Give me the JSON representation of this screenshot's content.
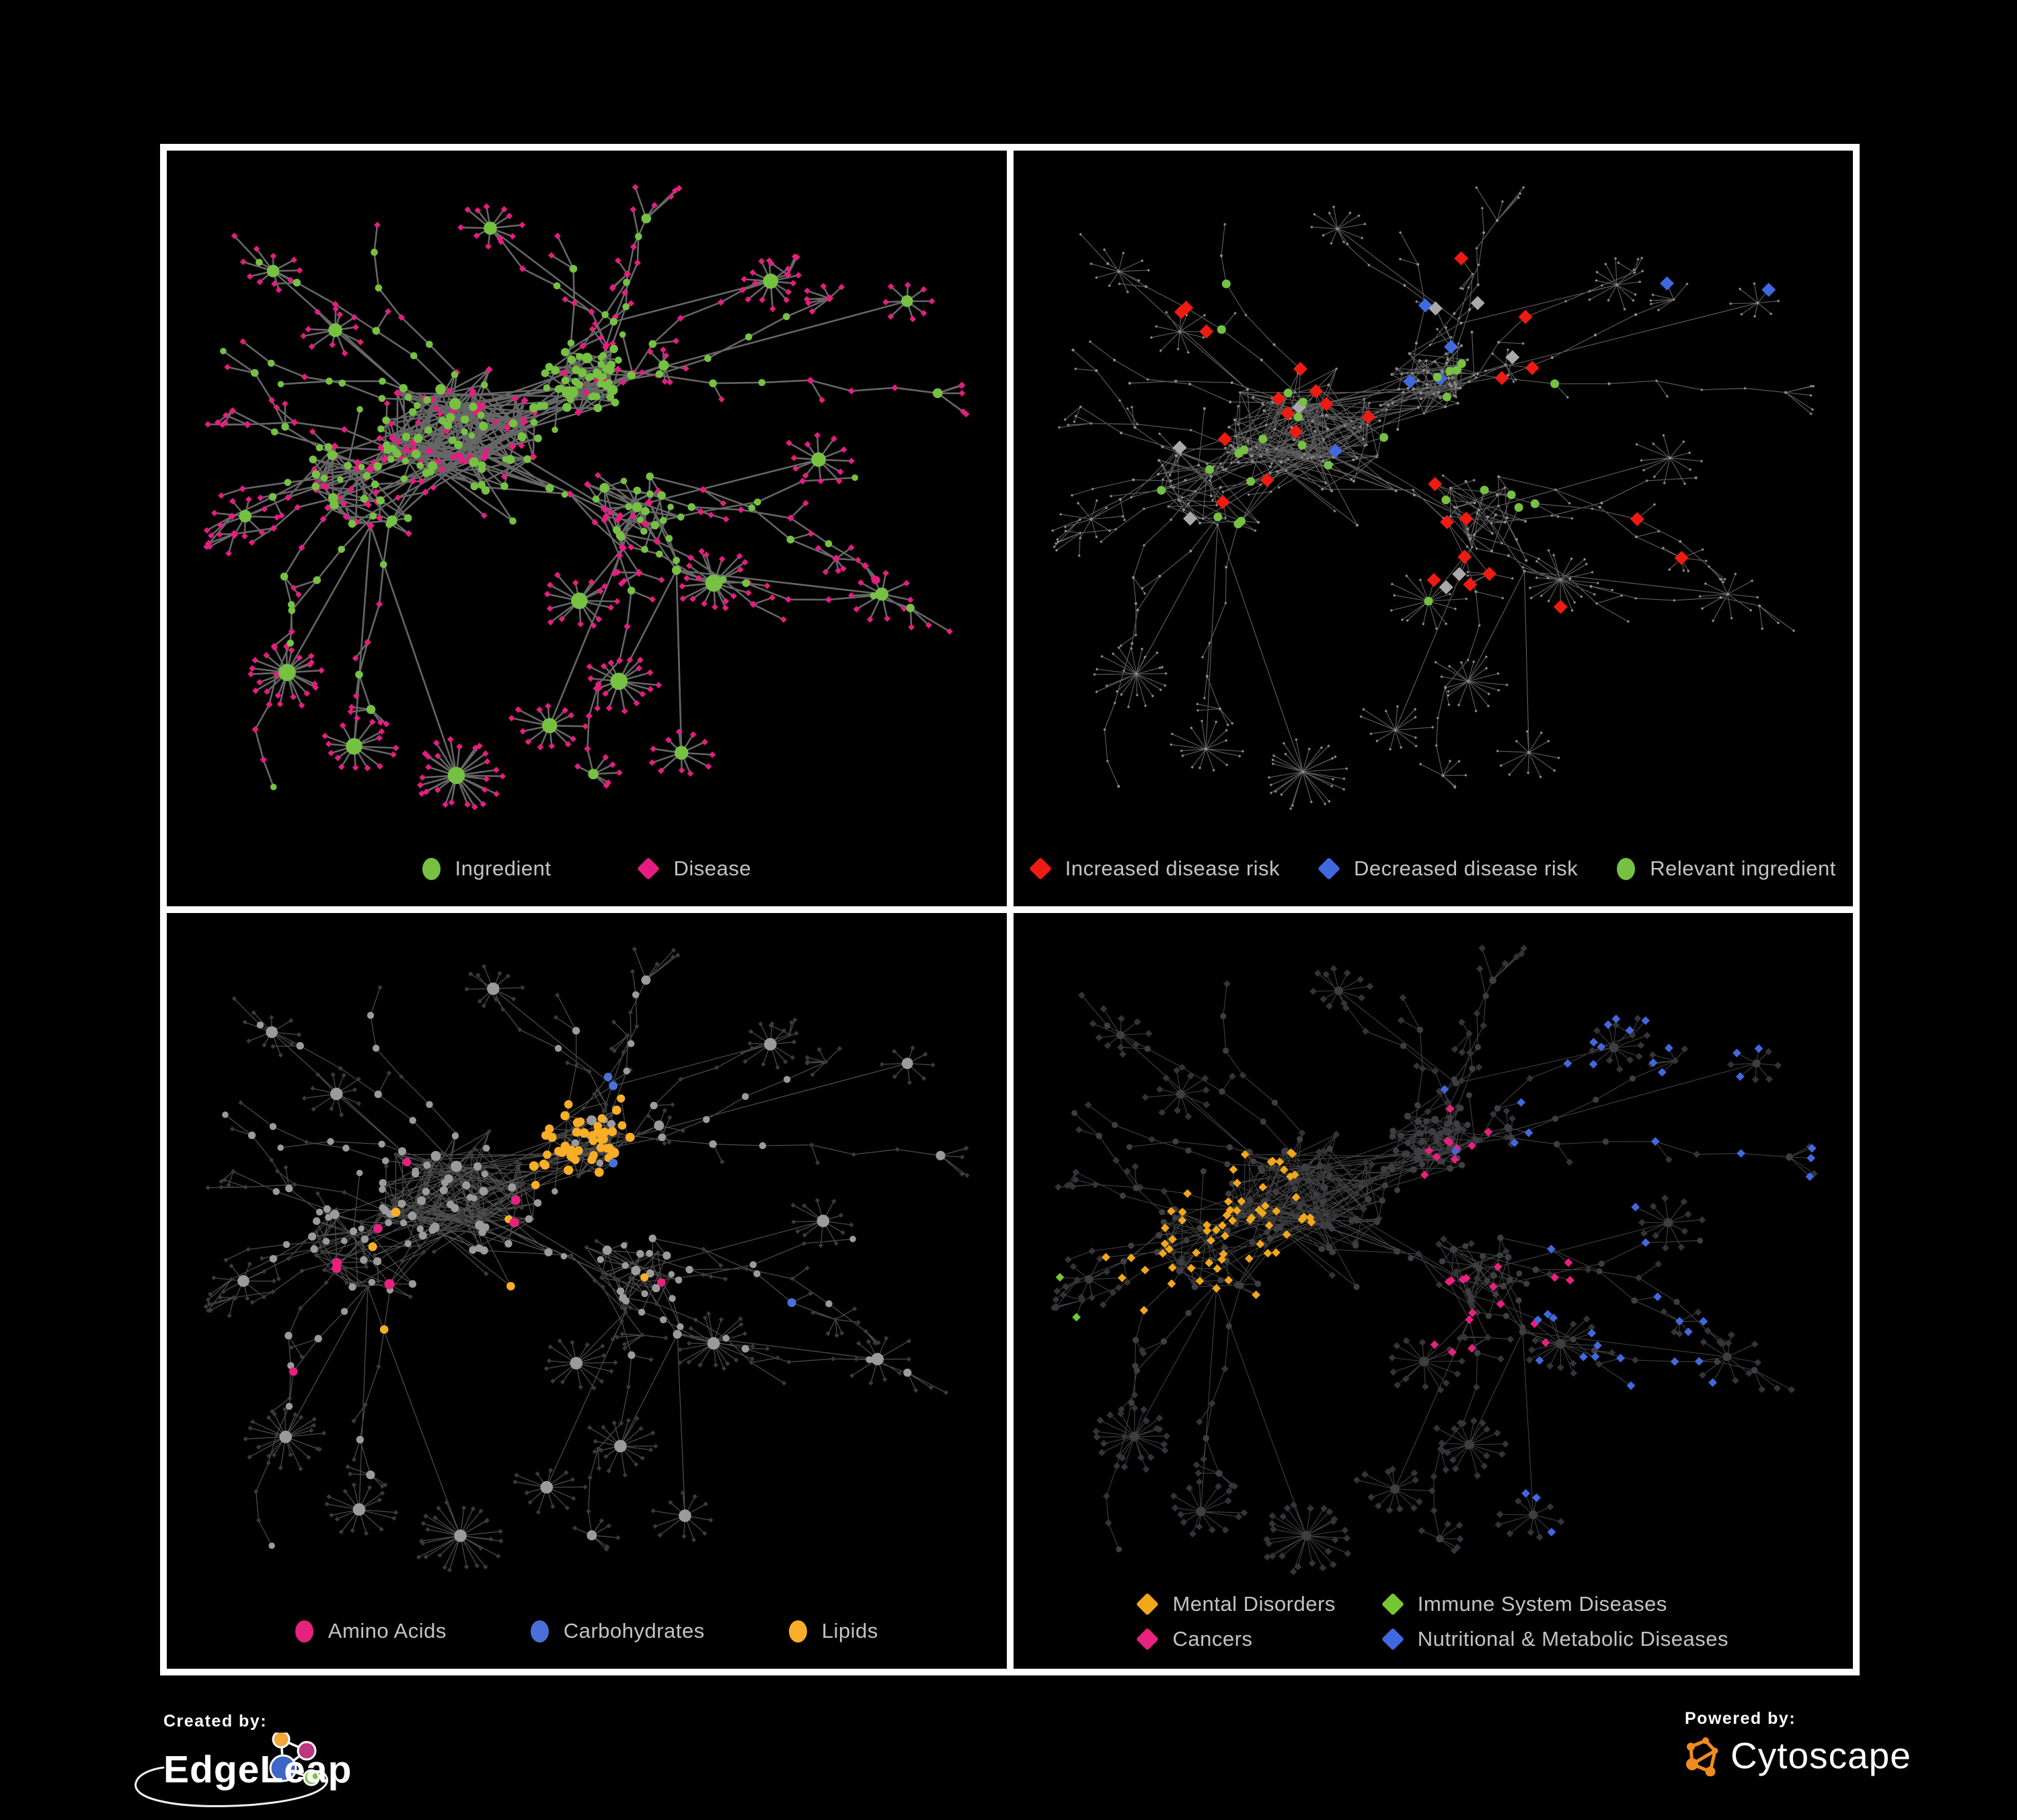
{
  "figure": {
    "background": "#000000",
    "panel_border_color": "#FFFFFF",
    "legend_text_color": "#C3C3C3"
  },
  "network": {
    "type": "network",
    "description": "Ingredient-disease association network drawn four times with different node colorings",
    "approx_node_count": 740,
    "approx_edge_count": 900
  },
  "panels": [
    {
      "id": "ingredient-vs-disease",
      "mode": "plain",
      "legend": [
        {
          "label": "Ingredient",
          "shape": "circle",
          "color": "#76C142"
        },
        {
          "label": "Disease",
          "shape": "diamond",
          "color": "#E61D80"
        }
      ],
      "legend_gap": 130,
      "style": {
        "edge_color": "#6F6F6F",
        "edge_opacity": 0.92,
        "edge_width": 2.6,
        "ingredient_color": "#76C142",
        "disease_color": "#E61D80"
      }
    },
    {
      "id": "disease-risk",
      "mode": "highlight",
      "legend": [
        {
          "label": "Increased disease risk",
          "shape": "diamond",
          "color": "#EE1B12"
        },
        {
          "label": "Decreased disease risk",
          "shape": "diamond",
          "color": "#4169DF"
        },
        {
          "label": "Relevant ingredient",
          "shape": "circle",
          "color": "#76C142"
        }
      ],
      "legend_gap": 58,
      "style": {
        "edge_color": "#828282",
        "edge_opacity": 0.72,
        "edge_width": 1.15,
        "base_node_color": "#8D8D8D",
        "highlights": {
          "increased": {
            "color": "#EE1B12",
            "count": 27,
            "shape": "diamond"
          },
          "decreased": {
            "color": "#4169DF",
            "count": 7,
            "shape": "diamond"
          },
          "neutral": {
            "color": "#A9A9A9",
            "count": 8,
            "shape": "diamond"
          },
          "ingredient": {
            "color": "#76C142",
            "count": 29,
            "shape": "circle"
          }
        }
      }
    },
    {
      "id": "ingredient-classes",
      "mode": "classes-ingredients",
      "legend": [
        {
          "label": "Amino Acids",
          "shape": "circle",
          "color": "#E6217E"
        },
        {
          "label": "Carbohydrates",
          "shape": "circle",
          "color": "#4A6FD6"
        },
        {
          "label": "Lipids",
          "shape": "circle",
          "color": "#F9AE27"
        }
      ],
      "legend_gap": 125,
      "style": {
        "edge_color": "#9A9A9A",
        "edge_opacity": 0.5,
        "edge_width": 1.25,
        "other_ingredient_color": "#9B9B9D",
        "disease_node_color": "#3A3A3C",
        "classes": {
          "amino_acids": {
            "color": "#E6217E",
            "count": 18
          },
          "carbohydrates": {
            "color": "#4A6FD6",
            "count": 14
          },
          "lipids": {
            "color": "#F9AE27",
            "count": 70
          }
        }
      }
    },
    {
      "id": "disease-categories",
      "mode": "classes-diseases",
      "legend": [
        {
          "label": "Mental Disorders",
          "shape": "diamond",
          "color": "#F2A71B"
        },
        {
          "label": "Immune System Diseases",
          "shape": "diamond",
          "color": "#76C832"
        },
        {
          "label": "Cancers",
          "shape": "diamond",
          "color": "#E6217E"
        },
        {
          "label": "Nutritional & Metabolic Diseases",
          "shape": "diamond",
          "color": "#4169DF"
        }
      ],
      "legend_layout": "two-column",
      "style": {
        "edge_color": "#8F8F8F",
        "edge_opacity": 0.45,
        "edge_width": 1.1,
        "other_disease_color": "#333338",
        "ingredient_node_color": "#3E3E42",
        "classes": {
          "mental": {
            "color": "#F2A71B",
            "count": 95
          },
          "immune": {
            "color": "#76C832",
            "count": 9
          },
          "cancers": {
            "color": "#E6217E",
            "count": 62
          },
          "nutritional": {
            "color": "#4169DF",
            "count": 72
          }
        }
      }
    }
  ],
  "footer": {
    "created_by_label": "Created by:",
    "edgeleap_label": "EdgeLeap",
    "powered_by_label": "Powered by:",
    "cytoscape_label": "Cytoscape",
    "edgeleap_logo_colors": {
      "orange": "#F2A63B",
      "magenta": "#BE3680",
      "blue": "#3E66C4",
      "green": "#7DC242",
      "stroke": "#FFFFFF"
    },
    "cytoscape_logo_color": "#EF8B22"
  }
}
